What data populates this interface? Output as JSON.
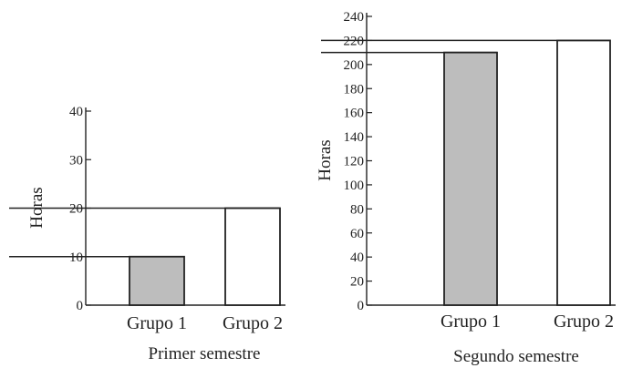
{
  "chart_data": [
    {
      "type": "bar",
      "title": "Primer semestre",
      "ylabel": "Horas",
      "categories": [
        "Grupo 1",
        "Grupo 2"
      ],
      "values": [
        10,
        20
      ],
      "bar_colors": [
        "#bdbdbd",
        "#ffffff"
      ],
      "ylim": [
        0,
        40
      ],
      "yticks": [
        0,
        10,
        20,
        30,
        40
      ],
      "reference_lines": [
        10,
        20
      ]
    },
    {
      "type": "bar",
      "title": "Segundo semestre",
      "ylabel": "Horas",
      "categories": [
        "Grupo 1",
        "Grupo 2"
      ],
      "values": [
        210,
        220
      ],
      "bar_colors": [
        "#bdbdbd",
        "#ffffff"
      ],
      "ylim": [
        0,
        240
      ],
      "yticks": [
        0,
        20,
        40,
        60,
        80,
        100,
        120,
        140,
        160,
        180,
        200,
        220,
        240
      ],
      "reference_lines": [
        210,
        220
      ]
    }
  ]
}
